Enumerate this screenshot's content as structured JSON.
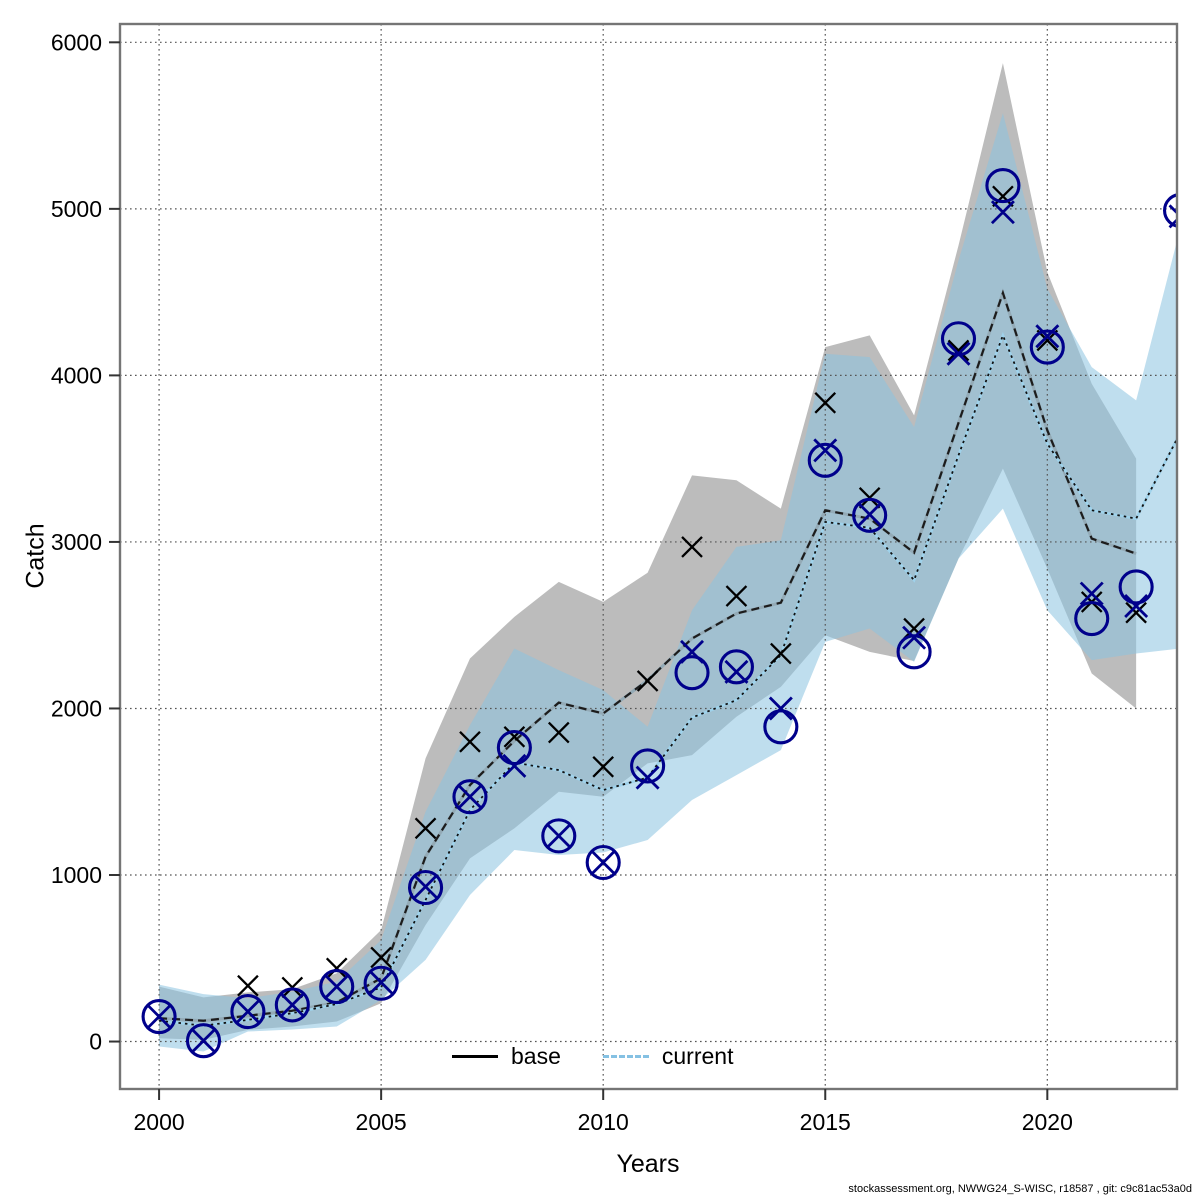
{
  "chart_data": {
    "type": "line",
    "title": "",
    "xlabel": "Years",
    "ylabel": "Catch",
    "footer": "stockassessment.org, NWWG24_S-WISC, r18587 , git: c9c81ac53a0d",
    "grid": true,
    "xlim": [
      1999.12,
      2022.92
    ],
    "ylim": [
      -285,
      6110
    ],
    "x_ticks": [
      2000,
      2005,
      2010,
      2015,
      2020
    ],
    "y_ticks": [
      0,
      1000,
      2000,
      3000,
      4000,
      5000,
      6000
    ],
    "legend": {
      "position": "bottom-center",
      "items": [
        {
          "label": "base",
          "color": "#000000",
          "style": "solid"
        },
        {
          "label": "current",
          "color": "#85c1e3",
          "style": "dashed"
        }
      ]
    },
    "colors": {
      "band_base": "#bcbcbc",
      "band_current": "#8ac2e0",
      "band_current_opacity": 0.55,
      "line_base_halo": "#93aab6",
      "line_base_core": "#1c1c1c",
      "line_current_halo": "#9fd2eb",
      "line_current_core": "#111111",
      "marker_base": "#000000",
      "marker_current": "#00008b",
      "grid": "#555555",
      "box": "#757575"
    },
    "series": [
      {
        "name": "base_band",
        "kind": "band",
        "years": [
          2000,
          2001,
          2002,
          2003,
          2004,
          2005,
          2006,
          2007,
          2008,
          2009,
          2010,
          2011,
          2012,
          2013,
          2014,
          2015,
          2016,
          2017,
          2018,
          2019,
          2020,
          2021,
          2022
        ],
        "upper": [
          330,
          265,
          295,
          315,
          410,
          670,
          1700,
          2300,
          2550,
          2760,
          2640,
          2815,
          3400,
          3370,
          3200,
          4170,
          4240,
          3760,
          4780,
          5875,
          4620,
          3950,
          3500
        ],
        "lower": [
          20,
          10,
          70,
          90,
          120,
          230,
          700,
          1100,
          1280,
          1500,
          1470,
          1670,
          1720,
          1950,
          2130,
          2440,
          2340,
          2285,
          2900,
          3440,
          2840,
          2210,
          2000
        ]
      },
      {
        "name": "current_band",
        "kind": "band",
        "years": [
          2000,
          2001,
          2002,
          2003,
          2004,
          2005,
          2006,
          2007,
          2008,
          2009,
          2010,
          2011,
          2012,
          2013,
          2014,
          2015,
          2016,
          2017,
          2018,
          2019,
          2020,
          2021,
          2022,
          2023
        ],
        "upper": [
          342,
          285,
          260,
          300,
          360,
          610,
          1380,
          1900,
          2360,
          2230,
          2110,
          1890,
          2590,
          2970,
          3010,
          4130,
          4110,
          3690,
          4690,
          5575,
          4520,
          4050,
          3850,
          4890
        ],
        "lower": [
          -30,
          -60,
          60,
          72,
          90,
          250,
          490,
          880,
          1150,
          1120,
          1135,
          1210,
          1450,
          1600,
          1750,
          2400,
          2480,
          2280,
          2900,
          3200,
          2590,
          2290,
          2330,
          2360
        ]
      },
      {
        "name": "base_line",
        "kind": "line",
        "years": [
          2000,
          2001,
          2002,
          2003,
          2004,
          2005,
          2006,
          2007,
          2008,
          2009,
          2010,
          2011,
          2012,
          2013,
          2014,
          2015,
          2016,
          2017,
          2018,
          2019,
          2020,
          2021,
          2022
        ],
        "values": [
          140,
          125,
          155,
          185,
          235,
          380,
          1110,
          1540,
          1805,
          2035,
          1970,
          2170,
          2420,
          2570,
          2635,
          3190,
          3140,
          2935,
          3715,
          4495,
          3670,
          3020,
          2930
        ]
      },
      {
        "name": "current_line",
        "kind": "line",
        "years": [
          2000,
          2001,
          2002,
          2003,
          2004,
          2005,
          2006,
          2007,
          2008,
          2009,
          2010,
          2011,
          2012,
          2013,
          2014,
          2015,
          2016,
          2017,
          2018,
          2019,
          2020,
          2021,
          2022,
          2023
        ],
        "values": [
          125,
          95,
          130,
          170,
          225,
          325,
          850,
          1390,
          1675,
          1630,
          1510,
          1585,
          1945,
          2050,
          2320,
          3120,
          3085,
          2770,
          3520,
          4240,
          3590,
          3190,
          3140,
          3660
        ]
      },
      {
        "name": "base_obs_cross",
        "kind": "cross",
        "years": [
          2002,
          2003,
          2004,
          2005,
          2006,
          2007,
          2008,
          2009,
          2010,
          2011,
          2012,
          2013,
          2014,
          2015,
          2016,
          2017,
          2018,
          2019,
          2020,
          2021,
          2022
        ],
        "values": [
          335,
          325,
          440,
          505,
          1280,
          1800,
          1830,
          1855,
          1650,
          2165,
          2970,
          2675,
          2330,
          3835,
          3265,
          2480,
          4150,
          5075,
          4210,
          2640,
          2575
        ]
      },
      {
        "name": "current_obs_cross",
        "kind": "cross",
        "years": [
          2000,
          2001,
          2002,
          2003,
          2004,
          2005,
          2006,
          2007,
          2008,
          2009,
          2010,
          2011,
          2012,
          2013,
          2014,
          2015,
          2016,
          2017,
          2018,
          2019,
          2020,
          2021,
          2022,
          2023
        ],
        "values": [
          150,
          5,
          180,
          220,
          330,
          355,
          930,
          1470,
          1655,
          1235,
          1075,
          1585,
          2340,
          2220,
          2000,
          3550,
          3165,
          2425,
          4130,
          4980,
          4235,
          2690,
          2615,
          4955
        ]
      },
      {
        "name": "current_obs_circle",
        "kind": "circle",
        "years": [
          2000,
          2001,
          2002,
          2003,
          2004,
          2005,
          2006,
          2007,
          2008,
          2009,
          2010,
          2011,
          2012,
          2013,
          2014,
          2015,
          2016,
          2017,
          2018,
          2019,
          2020,
          2021,
          2022,
          2023
        ],
        "values": [
          150,
          5,
          180,
          220,
          330,
          350,
          925,
          1470,
          1765,
          1235,
          1075,
          1655,
          2215,
          2250,
          1890,
          3490,
          3160,
          2340,
          4220,
          5140,
          4170,
          2540,
          2730,
          4990
        ]
      }
    ]
  }
}
